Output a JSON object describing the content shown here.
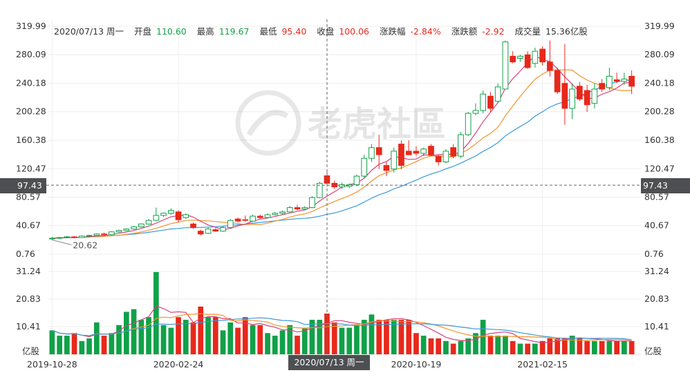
{
  "info": {
    "date": "2020/07/13 周一",
    "open_label": "开盘",
    "open": "110.60",
    "high_label": "最高",
    "high": "119.67",
    "low_label": "最低",
    "low": "95.40",
    "close_label": "收盘",
    "close": "100.06",
    "chgpct_label": "涨跌幅",
    "chgpct": "-2.84%",
    "chg_label": "涨跌额",
    "chg": "-2.92",
    "volume_label": "成交量",
    "volume": "15.36亿股"
  },
  "crosshair": {
    "price": "97.43",
    "date": "2020/07/13 周一"
  },
  "watermark": "老虎社區",
  "colors": {
    "up": "#e8281b",
    "down": "#10a148",
    "ma5": "#d6417a",
    "ma10": "#f2942c",
    "ma20": "#3a9ad9"
  },
  "chart_data": {
    "type": "candlestick",
    "price_axis": {
      "min": 0.76,
      "max": 319.99,
      "ticks": [
        "319.99",
        "280.09",
        "240.18",
        "200.28",
        "160.38",
        "120.47",
        "80.57",
        "40.67",
        "0.76"
      ]
    },
    "volume_axis": {
      "unit": "亿股",
      "ticks": [
        "31.24",
        "20.83",
        "10.41"
      ],
      "max": 31.24
    },
    "x_ticks": [
      {
        "label": "2019-10-28",
        "index": 0
      },
      {
        "label": "2020-02-24",
        "index": 17
      },
      {
        "label": "2020-10-19",
        "index": 49
      },
      {
        "label": "2021-02-15",
        "index": 66
      }
    ],
    "min_label": "20.62",
    "highlight_index": 37,
    "candles": [
      {
        "o": 22,
        "h": 25,
        "l": 20.6,
        "c": 23,
        "v": 9
      },
      {
        "o": 23,
        "h": 25,
        "l": 22,
        "c": 24,
        "v": 7
      },
      {
        "o": 24,
        "h": 26,
        "l": 23,
        "c": 25,
        "v": 7
      },
      {
        "o": 25,
        "h": 26,
        "l": 23,
        "c": 24,
        "v": 8
      },
      {
        "o": 24,
        "h": 27,
        "l": 24,
        "c": 26,
        "v": 5
      },
      {
        "o": 26,
        "h": 28,
        "l": 25,
        "c": 27,
        "v": 6
      },
      {
        "o": 27,
        "h": 30,
        "l": 26,
        "c": 29,
        "v": 12
      },
      {
        "o": 29,
        "h": 31,
        "l": 27,
        "c": 28,
        "v": 7
      },
      {
        "o": 28,
        "h": 33,
        "l": 27,
        "c": 32,
        "v": 8
      },
      {
        "o": 32,
        "h": 35,
        "l": 31,
        "c": 34,
        "v": 11
      },
      {
        "o": 34,
        "h": 37,
        "l": 33,
        "c": 36,
        "v": 16
      },
      {
        "o": 36,
        "h": 40,
        "l": 35,
        "c": 39,
        "v": 17
      },
      {
        "o": 39,
        "h": 44,
        "l": 38,
        "c": 43,
        "v": 13
      },
      {
        "o": 43,
        "h": 50,
        "l": 42,
        "c": 48,
        "v": 14
      },
      {
        "o": 48,
        "h": 66,
        "l": 47,
        "c": 55,
        "v": 31
      },
      {
        "o": 55,
        "h": 59,
        "l": 53,
        "c": 58,
        "v": 11
      },
      {
        "o": 58,
        "h": 65,
        "l": 56,
        "c": 62,
        "v": 10
      },
      {
        "o": 60,
        "h": 62,
        "l": 45,
        "c": 49,
        "v": 14
      },
      {
        "o": 52,
        "h": 58,
        "l": 50,
        "c": 56,
        "v": 13
      },
      {
        "o": 43,
        "h": 45,
        "l": 36,
        "c": 38,
        "v": 12
      },
      {
        "o": 33,
        "h": 35,
        "l": 27,
        "c": 29,
        "v": 18
      },
      {
        "o": 30,
        "h": 38,
        "l": 29,
        "c": 36,
        "v": 14
      },
      {
        "o": 35,
        "h": 37,
        "l": 32,
        "c": 33,
        "v": 14
      },
      {
        "o": 33,
        "h": 40,
        "l": 32,
        "c": 38,
        "v": 9
      },
      {
        "o": 38,
        "h": 50,
        "l": 37,
        "c": 48,
        "v": 12
      },
      {
        "o": 50,
        "h": 52,
        "l": 45,
        "c": 47,
        "v": 10
      },
      {
        "o": 49,
        "h": 55,
        "l": 46,
        "c": 48,
        "v": 14
      },
      {
        "o": 47,
        "h": 56,
        "l": 46,
        "c": 54,
        "v": 11
      },
      {
        "o": 54,
        "h": 56,
        "l": 50,
        "c": 52,
        "v": 11
      },
      {
        "o": 52,
        "h": 58,
        "l": 51,
        "c": 56,
        "v": 8
      },
      {
        "o": 56,
        "h": 60,
        "l": 55,
        "c": 58,
        "v": 7
      },
      {
        "o": 58,
        "h": 62,
        "l": 56,
        "c": 60,
        "v": 9
      },
      {
        "o": 60,
        "h": 68,
        "l": 59,
        "c": 66,
        "v": 11
      },
      {
        "o": 66,
        "h": 70,
        "l": 62,
        "c": 64,
        "v": 7
      },
      {
        "o": 64,
        "h": 68,
        "l": 62,
        "c": 66,
        "v": 10
      },
      {
        "o": 66,
        "h": 82,
        "l": 65,
        "c": 80,
        "v": 13
      },
      {
        "o": 80,
        "h": 102,
        "l": 79,
        "c": 100,
        "v": 13
      },
      {
        "o": 110.6,
        "h": 119.67,
        "l": 95.4,
        "c": 100.06,
        "v": 15.36
      },
      {
        "o": 100,
        "h": 104,
        "l": 92,
        "c": 95,
        "v": 12
      },
      {
        "o": 95,
        "h": 101,
        "l": 92,
        "c": 98,
        "v": 10
      },
      {
        "o": 96,
        "h": 100,
        "l": 93,
        "c": 98,
        "v": 10
      },
      {
        "o": 98,
        "h": 112,
        "l": 96,
        "c": 110,
        "v": 11
      },
      {
        "o": 110,
        "h": 140,
        "l": 108,
        "c": 135,
        "v": 13
      },
      {
        "o": 135,
        "h": 155,
        "l": 130,
        "c": 150,
        "v": 15
      },
      {
        "o": 150,
        "h": 168,
        "l": 120,
        "c": 140,
        "v": 13
      },
      {
        "o": 125,
        "h": 130,
        "l": 110,
        "c": 118,
        "v": 13
      },
      {
        "o": 120,
        "h": 150,
        "l": 115,
        "c": 145,
        "v": 13
      },
      {
        "o": 155,
        "h": 160,
        "l": 120,
        "c": 125,
        "v": 13
      },
      {
        "o": 145,
        "h": 160,
        "l": 140,
        "c": 140,
        "v": 13
      },
      {
        "o": 145,
        "h": 152,
        "l": 138,
        "c": 142,
        "v": 8
      },
      {
        "o": 142,
        "h": 150,
        "l": 138,
        "c": 148,
        "v": 7
      },
      {
        "o": 152,
        "h": 155,
        "l": 138,
        "c": 140,
        "v": 6
      },
      {
        "o": 138,
        "h": 140,
        "l": 125,
        "c": 130,
        "v": 6
      },
      {
        "o": 130,
        "h": 148,
        "l": 128,
        "c": 145,
        "v": 5
      },
      {
        "o": 150,
        "h": 155,
        "l": 135,
        "c": 138,
        "v": 4
      },
      {
        "o": 138,
        "h": 172,
        "l": 135,
        "c": 168,
        "v": 5
      },
      {
        "o": 168,
        "h": 200,
        "l": 166,
        "c": 198,
        "v": 6
      },
      {
        "o": 198,
        "h": 212,
        "l": 195,
        "c": 202,
        "v": 8
      },
      {
        "o": 202,
        "h": 230,
        "l": 198,
        "c": 225,
        "v": 13
      },
      {
        "o": 222,
        "h": 228,
        "l": 200,
        "c": 205,
        "v": 7
      },
      {
        "o": 215,
        "h": 240,
        "l": 212,
        "c": 235,
        "v": 7
      },
      {
        "o": 232,
        "h": 300,
        "l": 232,
        "c": 298,
        "v": 7
      },
      {
        "o": 278,
        "h": 285,
        "l": 268,
        "c": 270,
        "v": 5
      },
      {
        "o": 275,
        "h": 280,
        "l": 270,
        "c": 278,
        "v": 4
      },
      {
        "o": 280,
        "h": 285,
        "l": 260,
        "c": 262,
        "v": 4
      },
      {
        "o": 268,
        "h": 290,
        "l": 262,
        "c": 285,
        "v": 4
      },
      {
        "o": 288,
        "h": 292,
        "l": 265,
        "c": 270,
        "v": 5
      },
      {
        "o": 270,
        "h": 300,
        "l": 250,
        "c": 258,
        "v": 6
      },
      {
        "o": 258,
        "h": 262,
        "l": 225,
        "c": 228,
        "v": 6
      },
      {
        "o": 240,
        "h": 295,
        "l": 182,
        "c": 205,
        "v": 6
      },
      {
        "o": 205,
        "h": 240,
        "l": 190,
        "c": 232,
        "v": 7
      },
      {
        "o": 236,
        "h": 242,
        "l": 215,
        "c": 218,
        "v": 6
      },
      {
        "o": 230,
        "h": 238,
        "l": 200,
        "c": 210,
        "v": 5
      },
      {
        "o": 212,
        "h": 240,
        "l": 205,
        "c": 232,
        "v": 5
      },
      {
        "o": 240,
        "h": 246,
        "l": 228,
        "c": 232,
        "v": 5
      },
      {
        "o": 234,
        "h": 262,
        "l": 230,
        "c": 250,
        "v": 5
      },
      {
        "o": 245,
        "h": 255,
        "l": 240,
        "c": 243,
        "v": 5
      },
      {
        "o": 243,
        "h": 255,
        "l": 238,
        "c": 246,
        "v": 5
      },
      {
        "o": 250,
        "h": 258,
        "l": 225,
        "c": 236,
        "v": 5
      }
    ]
  }
}
